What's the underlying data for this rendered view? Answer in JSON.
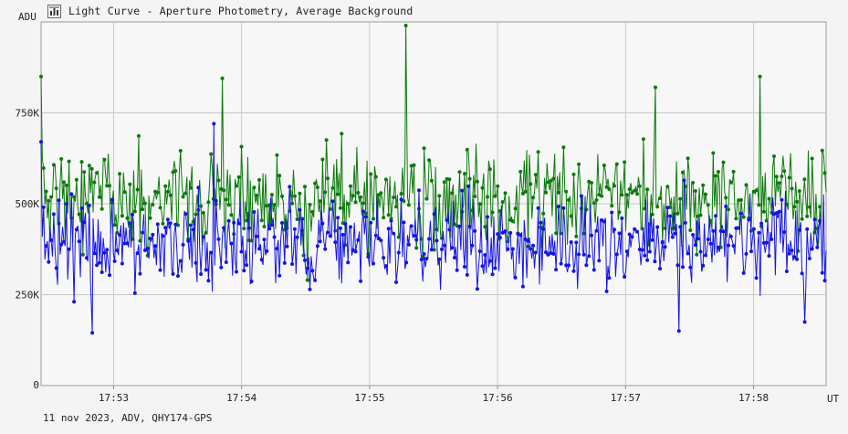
{
  "window": {
    "title": "Light Curve - Aperture Photometry, Average Background",
    "icon": "chart-icon"
  },
  "footer": "11 nov 2023, ADV, QHY174-GPS",
  "colors": {
    "background": "#f4f4f4",
    "plot_background": "#f7f7f7",
    "grid": "#c8c8c8",
    "series_green": "#0b7a0b",
    "series_blue": "#1414e6",
    "target_label": "#1414e6"
  },
  "chart_data": {
    "type": "line",
    "title": "Light Curve - Aperture Photometry, Average Background",
    "ylabel": "ADU",
    "xlabel": "UT",
    "ylim": [
      0,
      1000000
    ],
    "yticks": [
      {
        "value": 250000,
        "label": "250K"
      },
      {
        "value": 500000,
        "label": "500K"
      },
      {
        "value": 750000,
        "label": "750K"
      }
    ],
    "xlim": [
      "17:52:26",
      "17:58:34"
    ],
    "xticks": [
      "17:53",
      "17:54",
      "17:55",
      "17:56",
      "17:57",
      "17:58"
    ],
    "grid": true,
    "markers": true,
    "annotation": "target",
    "series_summary": [
      {
        "color": "green",
        "mean": 520000,
        "min_approx": 290000,
        "max_approx": 990000
      },
      {
        "color": "blue",
        "mean": 390000,
        "min_approx": 145000,
        "max_approx": 720000
      }
    ],
    "notable_points": [
      {
        "series": "green",
        "x": "17:55:17",
        "y": 990000
      },
      {
        "series": "green",
        "x": "17:52:26",
        "y": 850000
      },
      {
        "series": "green",
        "x": "17:53:51",
        "y": 845000
      },
      {
        "series": "green",
        "x": "17:58:03",
        "y": 850000
      },
      {
        "series": "green",
        "x": "17:57:14",
        "y": 820000
      },
      {
        "series": "blue",
        "x": "17:52:50",
        "y": 145000
      },
      {
        "series": "blue",
        "x": "17:57:25",
        "y": 150000
      },
      {
        "series": "blue",
        "x": "17:58:24",
        "y": 175000
      },
      {
        "series": "blue",
        "x": "17:53:47",
        "y": 720000
      },
      {
        "series": "blue",
        "x": "17:52:26",
        "y": 670000
      }
    ]
  }
}
